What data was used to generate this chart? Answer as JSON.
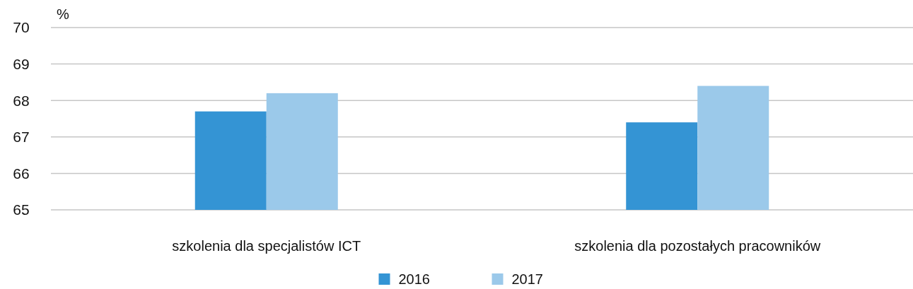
{
  "chart_data": {
    "type": "bar",
    "ylabel": "%",
    "categories": [
      "szkolenia dla specjalistów ICT",
      "szkolenia dla pozostałych pracowników"
    ],
    "series": [
      {
        "name": "2016",
        "color": "#3494d4",
        "values": [
          67.7,
          67.4
        ]
      },
      {
        "name": "2017",
        "color": "#9bc9ea",
        "values": [
          68.2,
          68.4
        ]
      }
    ],
    "ylim": [
      65,
      70
    ],
    "yticks": [
      65,
      66,
      67,
      68,
      69,
      70
    ],
    "grid": "y",
    "legend": "bottom"
  }
}
